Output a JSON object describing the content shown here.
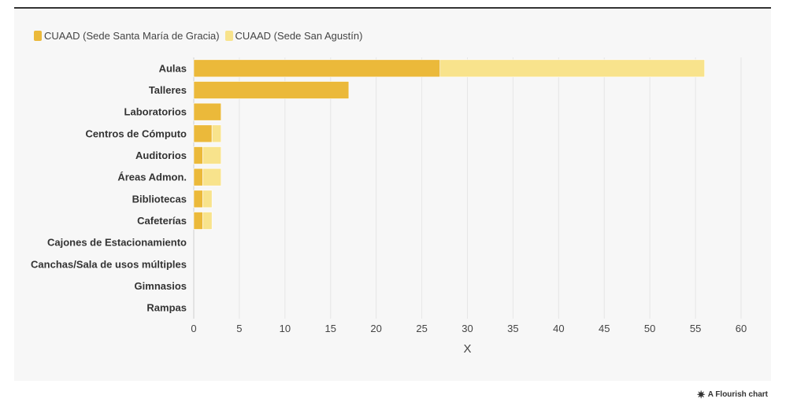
{
  "legend": {
    "series": [
      {
        "name": "CUAAD (Sede Santa María de Gracia)",
        "color": "#ebb93a"
      },
      {
        "name": "CUAAD (Sede San Agustín)",
        "color": "#f8e38c"
      }
    ]
  },
  "footer": {
    "icon": "flourish-star-icon",
    "text": "A Flourish chart"
  },
  "chart_data": {
    "type": "bar",
    "orientation": "horizontal",
    "stacked": true,
    "categories": [
      "Aulas",
      "Talleres",
      "Laboratorios",
      "Centros de Cómputo",
      "Auditorios",
      "Áreas Admon.",
      "Bibliotecas",
      "Cafeterías",
      "Cajones de Estacionamiento",
      "Canchas/Sala de usos múltiples",
      "Gimnasios",
      "Rampas"
    ],
    "series": [
      {
        "name": "CUAAD (Sede Santa María de Gracia)",
        "color": "#ebb93a",
        "values": [
          27,
          17,
          3,
          2,
          1,
          1,
          1,
          1,
          0,
          0,
          0,
          0
        ]
      },
      {
        "name": "CUAAD (Sede San Agustín)",
        "color": "#f8e38c",
        "values": [
          29,
          0,
          0,
          1,
          2,
          2,
          1,
          1,
          0,
          0,
          0,
          0
        ]
      }
    ],
    "xlabel": "X",
    "ylabel": "",
    "xlim": [
      0,
      60
    ],
    "xticks": [
      0,
      5,
      10,
      15,
      20,
      25,
      30,
      35,
      40,
      45,
      50,
      55,
      60
    ],
    "grid": true,
    "legend_position": "top-left"
  }
}
